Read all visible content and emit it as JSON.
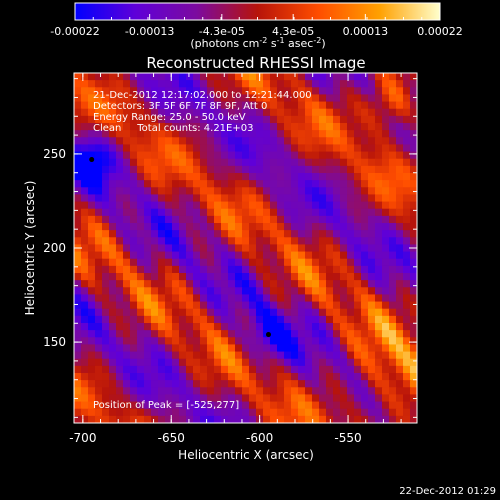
{
  "colorbar": {
    "tick_labels": [
      "-0.00022",
      "-0.00013",
      "-4.3e-05",
      "4.3e-05",
      "0.00013",
      "0.00022"
    ],
    "tick_values": [
      -0.00022,
      -0.00013,
      -4.3e-05,
      4.3e-05,
      0.00013,
      0.00022
    ],
    "range": [
      -0.00022,
      0.00022
    ],
    "units_main": "(photons cm",
    "units_exp1": "-2",
    "units_mid": " s",
    "units_exp2": "-1",
    "units_mid2": " asec",
    "units_exp3": "-2",
    "units_end": ")",
    "colors": [
      "#0000ff",
      "#5f00d8",
      "#7c0a9f",
      "#b7140a",
      "#ff4d00",
      "#ffa000",
      "#ffffcc"
    ]
  },
  "chart_data": {
    "type": "heatmap",
    "title": "Reconstructed RHESSI Image",
    "xlabel": "Heliocentric X (arcsec)",
    "ylabel": "Heliocentric Y (arcsec)",
    "xlim": [
      -705,
      -511
    ],
    "ylim": [
      107,
      293
    ],
    "x_ticks": [
      -700,
      -650,
      -600,
      -550
    ],
    "y_ticks": [
      150,
      200,
      250
    ],
    "peak_position": [
      -525,
      277
    ],
    "minimum_markers": [
      [
        -695,
        247
      ],
      [
        -595,
        154
      ]
    ],
    "annotations": [
      "21-Dec-2012 12:17:02.000 to 12:21:44.000",
      "Detectors: 3F 5F 6F 7F 8F 9F, Att 0",
      "Energy Range: 25.0 - 50.0 keV",
      "Clean     Total counts: 4.21E+03"
    ],
    "peak_label": "Position of Peak = [-525,277]"
  },
  "footer": {
    "timestamp": "22-Dec-2012 01:29"
  }
}
